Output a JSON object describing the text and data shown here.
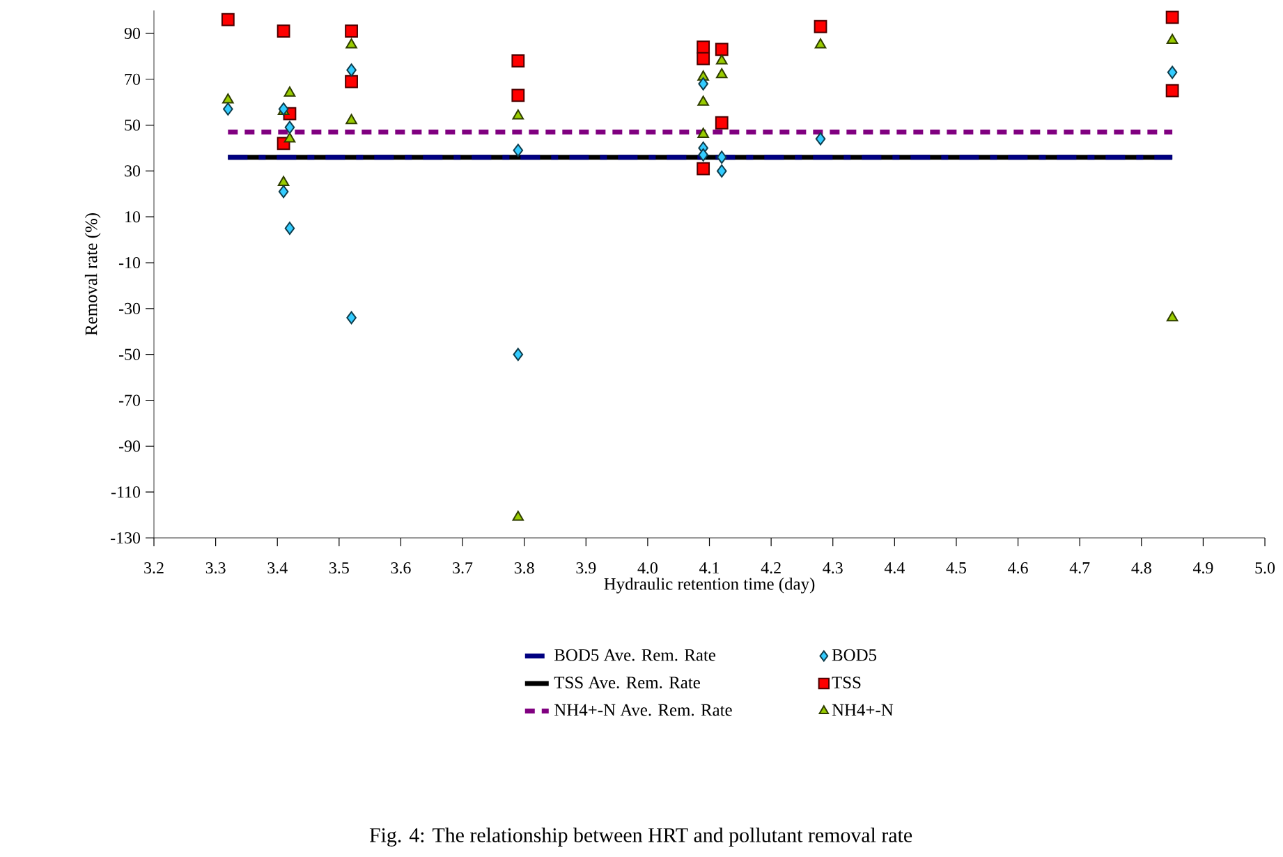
{
  "chart_data": {
    "type": "scatter",
    "xlabel": "Hydraulic retention time (day)",
    "ylabel": "Removal rate  (%)",
    "xlim": [
      3.2,
      5.0
    ],
    "xticks": [
      3.2,
      3.3,
      3.4,
      3.5,
      3.6,
      3.7,
      3.8,
      3.9,
      {
        "value": 4,
        "label": "4.0"
      },
      4.1,
      4.2,
      4.3,
      4.4,
      4.5,
      4.6,
      4.7,
      4.8,
      4.9,
      {
        "value": 5,
        "label": "5.0"
      }
    ],
    "ylim": [
      -130,
      100
    ],
    "yticks": [
      -130,
      -110,
      -90,
      -70,
      -50,
      -30,
      -10,
      10,
      30,
      50,
      70,
      90
    ],
    "grid": false,
    "legend": "bottom",
    "series": [
      {
        "name": "BOD5 Ave. Rem. Rate",
        "type": "line",
        "line_style": "dashed",
        "marker": "none",
        "color": "#000080",
        "x": [
          3.32,
          4.85
        ],
        "values": [
          36,
          36
        ]
      },
      {
        "name": "TSS Ave. Rem. Rate",
        "type": "line",
        "line_style": "solid",
        "marker": "none",
        "color": "#000000",
        "x": [
          3.32,
          4.85
        ],
        "values": [
          36,
          36
        ]
      },
      {
        "name": "NH4+-N Ave. Rem. Rate",
        "type": "line",
        "line_style": "dotted",
        "marker": "none",
        "color": "#800080",
        "x": [
          3.32,
          4.85
        ],
        "values": [
          47,
          47
        ]
      },
      {
        "name": "BOD5",
        "marker": "diamond",
        "color": "#33ccff",
        "x": [
          3.32,
          3.41,
          3.41,
          3.42,
          3.42,
          3.52,
          3.52,
          3.79,
          3.79,
          4.09,
          4.09,
          4.09,
          4.12,
          4.12,
          4.28,
          4.85
        ],
        "values": [
          57,
          57,
          21,
          49,
          5,
          74,
          -34,
          39,
          -50,
          68,
          40,
          37,
          36,
          30,
          44,
          73
        ]
      },
      {
        "name": "TSS",
        "marker": "square",
        "color": "#ff0000",
        "x": [
          3.32,
          3.41,
          3.41,
          3.42,
          3.52,
          3.52,
          3.79,
          3.79,
          4.09,
          4.09,
          4.09,
          4.12,
          4.12,
          4.28,
          4.85,
          4.85
        ],
        "values": [
          96,
          91,
          42,
          55,
          91,
          69,
          78,
          63,
          84,
          79,
          31,
          83,
          51,
          93,
          97,
          65
        ]
      },
      {
        "name": "NH4+-N",
        "marker": "triangle",
        "color": "#99cc00",
        "x": [
          3.32,
          3.41,
          3.41,
          3.42,
          3.42,
          3.52,
          3.52,
          3.79,
          3.79,
          4.09,
          4.09,
          4.09,
          4.12,
          4.12,
          4.28,
          4.85,
          4.85
        ],
        "values": [
          61,
          56,
          25,
          64,
          44,
          85,
          52,
          54,
          -121,
          71,
          60,
          46,
          78,
          72,
          85,
          87,
          -34
        ]
      }
    ],
    "annotations": [
      "Fig. 4: The relationship between HRT and pollutant removal rate"
    ]
  }
}
